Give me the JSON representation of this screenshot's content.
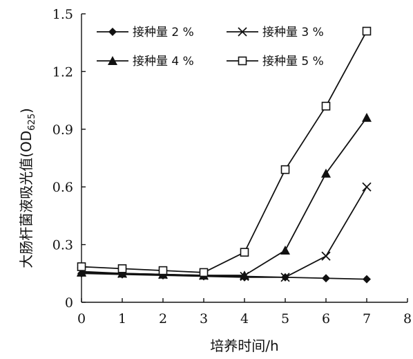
{
  "chart_data": {
    "type": "line",
    "xlabel": "培养时间/h",
    "ylabel": "大肠杆菌液吸光值(OD",
    "ylabel_subscript": "625",
    "ylabel_close": ")",
    "xlim": [
      0,
      8
    ],
    "ylim": [
      0,
      1.5
    ],
    "x_ticks": [
      "0",
      "1",
      "2",
      "3",
      "4",
      "5",
      "6",
      "7",
      "8"
    ],
    "y_ticks": [
      "0",
      "0.3",
      "0.6",
      "0.9",
      "1.2",
      "1.5"
    ],
    "grid": false,
    "legend_position": "top-left",
    "x": [
      0,
      1,
      2,
      3,
      4,
      5,
      6,
      7
    ],
    "series": [
      {
        "name": "接种量 2 %",
        "marker": "diamond",
        "values": [
          0.15,
          0.145,
          0.14,
          0.135,
          0.13,
          0.13,
          0.125,
          0.12
        ]
      },
      {
        "name": "接种量 3 %",
        "marker": "x",
        "values": [
          0.16,
          0.15,
          0.145,
          0.14,
          0.135,
          0.13,
          0.24,
          0.6
        ]
      },
      {
        "name": "接种量 4 %",
        "marker": "triangle",
        "values": [
          0.155,
          0.15,
          0.145,
          0.14,
          0.14,
          0.27,
          0.67,
          0.96
        ]
      },
      {
        "name": "接种量 5 %",
        "marker": "square-open",
        "values": [
          0.185,
          0.175,
          0.165,
          0.155,
          0.26,
          0.69,
          1.02,
          1.41
        ]
      }
    ]
  }
}
